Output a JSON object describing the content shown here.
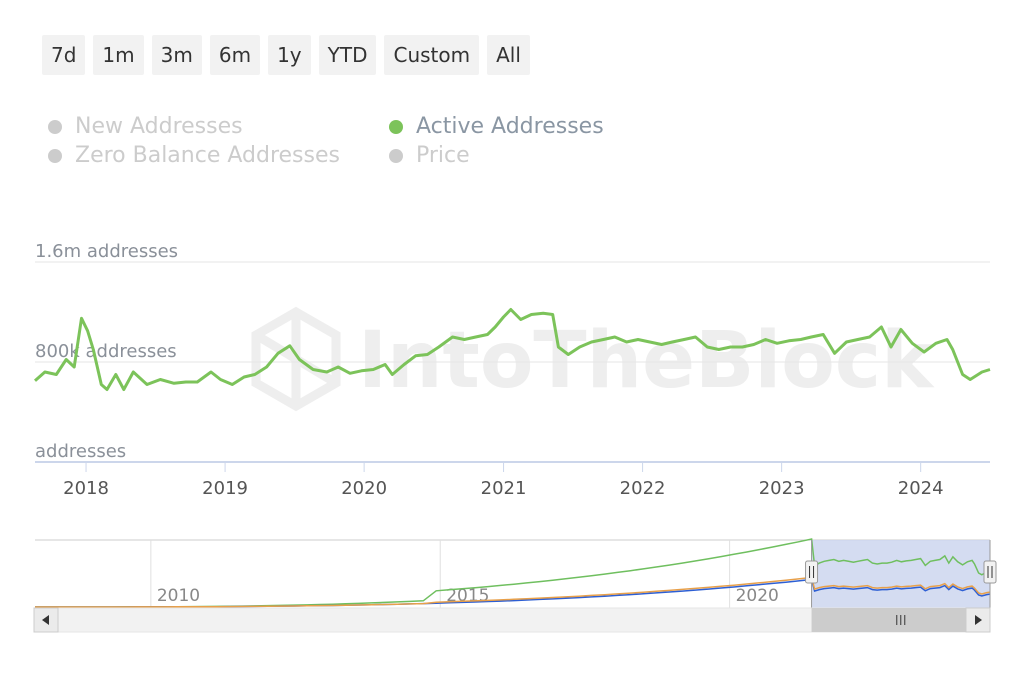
{
  "range_selector": {
    "buttons": [
      "7d",
      "1m",
      "3m",
      "6m",
      "1y",
      "YTD",
      "Custom",
      "All"
    ]
  },
  "legend": [
    {
      "label": "New Addresses",
      "active": false
    },
    {
      "label": "Active Addresses",
      "active": true
    },
    {
      "label": "Zero Balance Addresses",
      "active": false
    },
    {
      "label": "Price",
      "active": false
    }
  ],
  "watermark": "IntoTheBlock",
  "colors": {
    "series": "#7cc35a",
    "inactive": "#cccccc",
    "navigator_blue": "#2d5fd4",
    "navigator_orange": "#e8a04a",
    "navigator_mask": "#ccd6ee"
  },
  "chart_data": {
    "type": "line",
    "title": "",
    "ylabel": "",
    "y_ticks": [
      {
        "value": 0,
        "label": "addresses"
      },
      {
        "value": 800000,
        "label": "800k addresses"
      },
      {
        "value": 1600000,
        "label": "1.6m addresses"
      }
    ],
    "ylim": [
      0,
      1600000
    ],
    "xlim": [
      "2017-08-20",
      "2024-07-01"
    ],
    "x_ticks": [
      "2018",
      "2019",
      "2020",
      "2021",
      "2022",
      "2023",
      "2024"
    ],
    "grid": true,
    "legend_position": "top",
    "series": [
      {
        "name": "Active Addresses",
        "color": "#7cc35a",
        "points": [
          [
            "2017-08-20",
            650000
          ],
          [
            "2017-09-15",
            720000
          ],
          [
            "2017-10-15",
            700000
          ],
          [
            "2017-11-10",
            820000
          ],
          [
            "2017-12-01",
            760000
          ],
          [
            "2017-12-20",
            1150000
          ],
          [
            "2018-01-05",
            1050000
          ],
          [
            "2018-01-20",
            900000
          ],
          [
            "2018-02-10",
            620000
          ],
          [
            "2018-02-25",
            580000
          ],
          [
            "2018-03-20",
            700000
          ],
          [
            "2018-04-10",
            580000
          ],
          [
            "2018-05-05",
            720000
          ],
          [
            "2018-06-10",
            620000
          ],
          [
            "2018-07-15",
            660000
          ],
          [
            "2018-08-20",
            630000
          ],
          [
            "2018-09-20",
            640000
          ],
          [
            "2018-10-20",
            640000
          ],
          [
            "2018-11-25",
            720000
          ],
          [
            "2018-12-20",
            660000
          ],
          [
            "2019-01-20",
            620000
          ],
          [
            "2019-02-20",
            680000
          ],
          [
            "2019-03-20",
            700000
          ],
          [
            "2019-04-20",
            760000
          ],
          [
            "2019-05-20",
            870000
          ],
          [
            "2019-06-20",
            930000
          ],
          [
            "2019-07-15",
            820000
          ],
          [
            "2019-08-20",
            740000
          ],
          [
            "2019-09-25",
            720000
          ],
          [
            "2019-10-25",
            760000
          ],
          [
            "2019-11-25",
            710000
          ],
          [
            "2019-12-25",
            730000
          ],
          [
            "2020-01-25",
            740000
          ],
          [
            "2020-02-25",
            780000
          ],
          [
            "2020-03-15",
            700000
          ],
          [
            "2020-04-15",
            780000
          ],
          [
            "2020-05-15",
            850000
          ],
          [
            "2020-06-15",
            860000
          ],
          [
            "2020-07-15",
            920000
          ],
          [
            "2020-08-20",
            1000000
          ],
          [
            "2020-09-20",
            980000
          ],
          [
            "2020-10-20",
            1000000
          ],
          [
            "2020-11-20",
            1020000
          ],
          [
            "2020-12-10",
            1080000
          ],
          [
            "2021-01-01",
            1160000
          ],
          [
            "2021-01-20",
            1220000
          ],
          [
            "2021-02-15",
            1140000
          ],
          [
            "2021-03-15",
            1180000
          ],
          [
            "2021-04-15",
            1190000
          ],
          [
            "2021-05-10",
            1180000
          ],
          [
            "2021-05-25",
            920000
          ],
          [
            "2021-06-20",
            860000
          ],
          [
            "2021-07-20",
            920000
          ],
          [
            "2021-08-20",
            960000
          ],
          [
            "2021-09-20",
            980000
          ],
          [
            "2021-10-20",
            1000000
          ],
          [
            "2021-11-20",
            960000
          ],
          [
            "2021-12-20",
            980000
          ],
          [
            "2022-01-20",
            960000
          ],
          [
            "2022-02-20",
            940000
          ],
          [
            "2022-03-20",
            960000
          ],
          [
            "2022-04-20",
            980000
          ],
          [
            "2022-05-20",
            1000000
          ],
          [
            "2022-06-20",
            920000
          ],
          [
            "2022-07-20",
            900000
          ],
          [
            "2022-08-20",
            920000
          ],
          [
            "2022-09-20",
            920000
          ],
          [
            "2022-10-20",
            940000
          ],
          [
            "2022-11-20",
            980000
          ],
          [
            "2022-12-20",
            950000
          ],
          [
            "2023-01-20",
            970000
          ],
          [
            "2023-02-20",
            980000
          ],
          [
            "2023-03-20",
            1000000
          ],
          [
            "2023-04-20",
            1020000
          ],
          [
            "2023-05-20",
            870000
          ],
          [
            "2023-06-20",
            960000
          ],
          [
            "2023-07-20",
            980000
          ],
          [
            "2023-08-20",
            1000000
          ],
          [
            "2023-09-20",
            1080000
          ],
          [
            "2023-10-15",
            920000
          ],
          [
            "2023-11-10",
            1060000
          ],
          [
            "2023-12-10",
            950000
          ],
          [
            "2024-01-10",
            880000
          ],
          [
            "2024-02-10",
            950000
          ],
          [
            "2024-03-10",
            980000
          ],
          [
            "2024-03-25",
            900000
          ],
          [
            "2024-04-20",
            700000
          ],
          [
            "2024-05-10",
            660000
          ],
          [
            "2024-06-10",
            720000
          ],
          [
            "2024-07-01",
            740000
          ]
        ]
      }
    ],
    "navigator": {
      "x_ticks": [
        "2010",
        "2015",
        "2020"
      ],
      "selected_range": [
        "2021-06-01",
        "2024-07-01"
      ]
    }
  }
}
